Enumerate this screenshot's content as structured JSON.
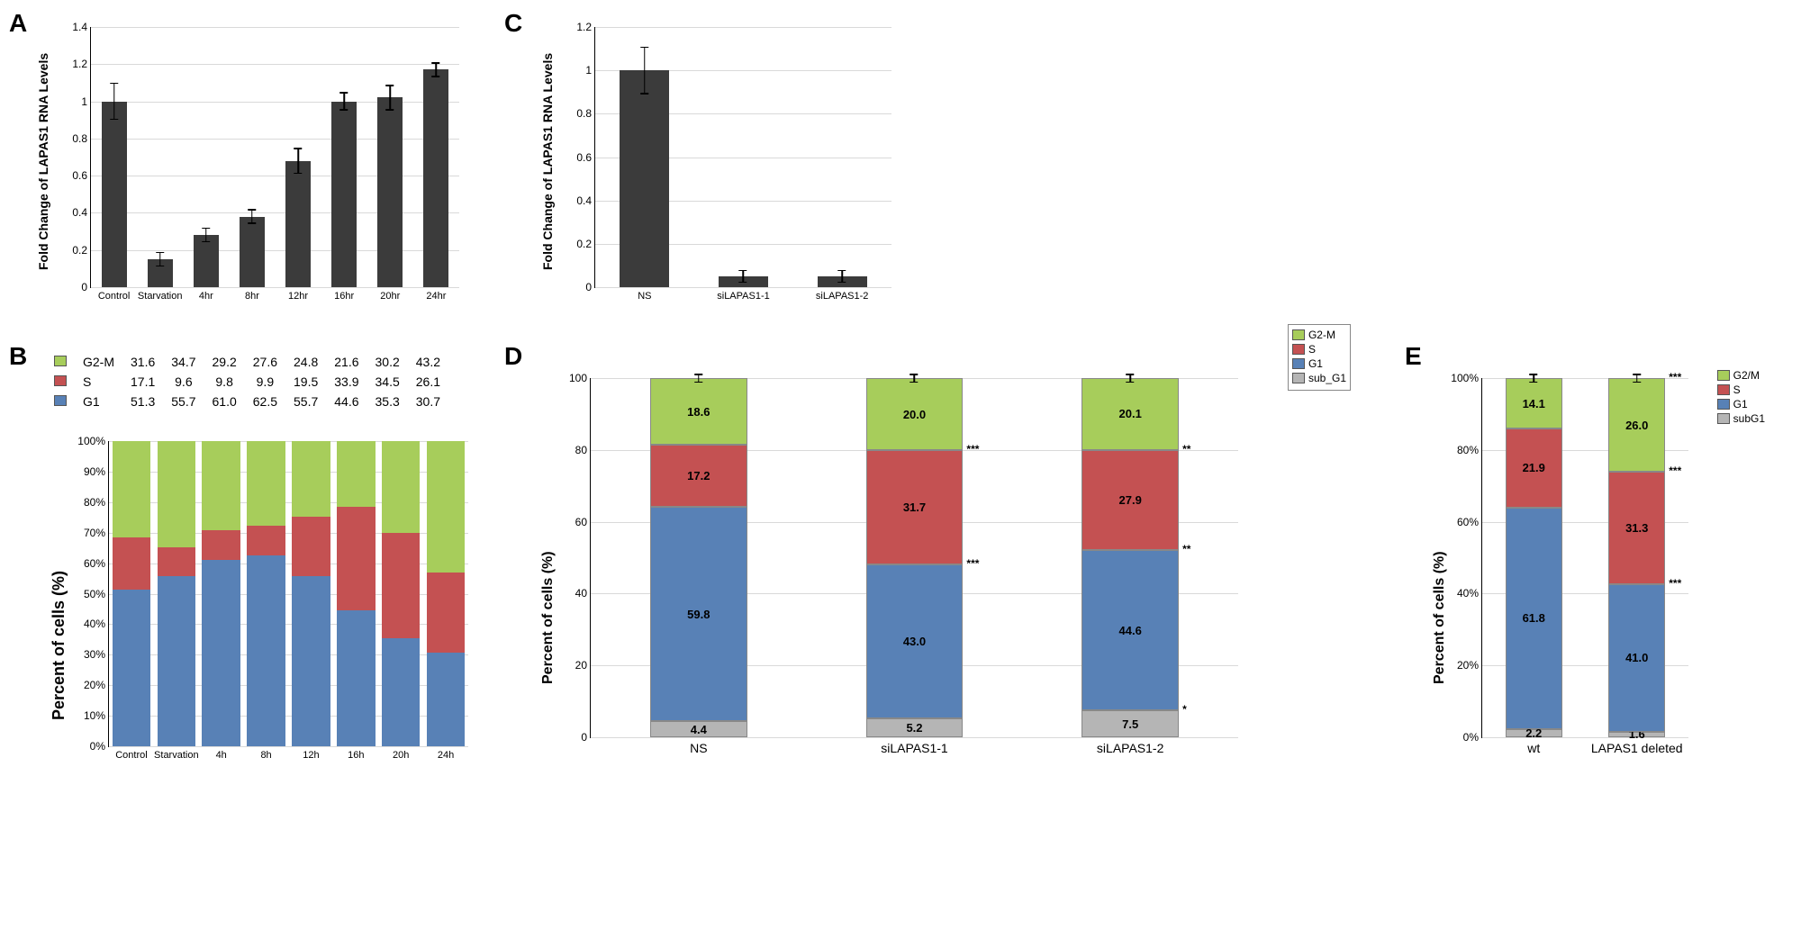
{
  "colors": {
    "bar_dark": "#3b3b3b",
    "g2m": "#a7cd5b",
    "s_phase": "#c45152",
    "g1": "#5881b6",
    "subg1": "#b5b5b5",
    "grid": "#d9d9d9",
    "bg": "#ffffff"
  },
  "panelA": {
    "label": "A",
    "ylabel": "Fold Change of LAPAS1 RNA Levels",
    "ylim": [
      0,
      1.4
    ],
    "ytick_step": 0.2,
    "categories": [
      "Control",
      "Starvation",
      "4hr",
      "8hr",
      "12hr",
      "16hr",
      "20hr",
      "24hr"
    ],
    "values": [
      1.0,
      0.15,
      0.28,
      0.38,
      0.68,
      1.0,
      1.02,
      1.17
    ],
    "errors": [
      0.1,
      0.04,
      0.04,
      0.04,
      0.07,
      0.05,
      0.07,
      0.04
    ],
    "bar_width": 0.55
  },
  "panelB": {
    "label": "B",
    "ylabel": "Percent of cells (%)",
    "ylim": [
      0,
      100
    ],
    "ytick_step": 10,
    "ytick_suffix": "%",
    "categories": [
      "Control",
      "Starvation",
      "4h",
      "8h",
      "12h",
      "16h",
      "20h",
      "24h"
    ],
    "legend": [
      {
        "key": "g2m",
        "label": "G2-M"
      },
      {
        "key": "s_phase",
        "label": "S"
      },
      {
        "key": "g1",
        "label": "G1"
      }
    ],
    "table_rows": [
      {
        "label": "G2-M",
        "color": "g2m",
        "values": [
          "31.6",
          "34.7",
          "29.2",
          "27.6",
          "24.8",
          "21.6",
          "30.2",
          "43.2"
        ]
      },
      {
        "label": "S",
        "color": "s_phase",
        "values": [
          "17.1",
          "9.6",
          "9.8",
          "9.9",
          "19.5",
          "33.9",
          "34.5",
          "26.1"
        ]
      },
      {
        "label": "G1",
        "color": "g1",
        "values": [
          "51.3",
          "55.7",
          "61.0",
          "62.5",
          "55.7",
          "44.6",
          "35.3",
          "30.7"
        ]
      }
    ],
    "stacks": [
      {
        "g1": 51.3,
        "s": 17.1,
        "g2m": 31.6
      },
      {
        "g1": 55.7,
        "s": 9.6,
        "g2m": 34.7
      },
      {
        "g1": 61.0,
        "s": 9.8,
        "g2m": 29.2
      },
      {
        "g1": 62.5,
        "s": 9.9,
        "g2m": 27.6
      },
      {
        "g1": 55.7,
        "s": 19.5,
        "g2m": 24.8
      },
      {
        "g1": 44.6,
        "s": 33.9,
        "g2m": 21.6
      },
      {
        "g1": 35.3,
        "s": 34.5,
        "g2m": 30.2
      },
      {
        "g1": 30.7,
        "s": 26.1,
        "g2m": 43.2
      }
    ],
    "bar_width": 0.85
  },
  "panelC": {
    "label": "C",
    "ylabel": "Fold Change of LAPAS1 RNA Levels",
    "ylim": [
      0,
      1.2
    ],
    "ytick_step": 0.2,
    "categories": [
      "NS",
      "siLAPAS1-1",
      "siLAPAS1-2"
    ],
    "values": [
      1.0,
      0.05,
      0.05
    ],
    "errors": [
      0.11,
      0.03,
      0.03
    ],
    "bar_width": 0.5
  },
  "panelD": {
    "label": "D",
    "ylabel": "Percent of cells (%)",
    "ylim": [
      0,
      100
    ],
    "ytick_step": 20,
    "categories": [
      "NS",
      "siLAPAS1-1",
      "siLAPAS1-2"
    ],
    "legend": [
      {
        "key": "g2m",
        "label": "G2-M"
      },
      {
        "key": "s_phase",
        "label": "S"
      },
      {
        "key": "g1",
        "label": "G1"
      },
      {
        "key": "subg1",
        "label": "sub_G1"
      }
    ],
    "stacks": [
      {
        "subg1": 4.4,
        "g1": 59.8,
        "s": 17.2,
        "g2m": 18.6,
        "labels": {
          "subg1": "4.4",
          "g1": "59.8",
          "s": "17.2",
          "g2m": "18.6"
        },
        "sig": {}
      },
      {
        "subg1": 5.2,
        "g1": 43.0,
        "s": 31.7,
        "g2m": 20.0,
        "labels": {
          "subg1": "5.2",
          "g1": "43.0",
          "s": "31.7",
          "g2m": "20.0"
        },
        "sig": {
          "s": "***",
          "g1": "***"
        }
      },
      {
        "subg1": 7.5,
        "g1": 44.6,
        "s": 27.9,
        "g2m": 20.1,
        "labels": {
          "subg1": "7.5",
          "g1": "44.6",
          "s": "27.9",
          "g2m": "20.1"
        },
        "sig": {
          "s": "**",
          "g1": "**",
          "subg1": "*"
        }
      }
    ],
    "bar_width": 0.45
  },
  "panelE": {
    "label": "E",
    "ylabel": "Percent of cells (%)",
    "ylim": [
      0,
      100
    ],
    "ytick_step": 20,
    "ytick_suffix": "%",
    "categories": [
      "wt",
      "LAPAS1 deleted"
    ],
    "legend": [
      {
        "key": "g2m",
        "label": "G2/M"
      },
      {
        "key": "s_phase",
        "label": "S"
      },
      {
        "key": "g1",
        "label": "G1"
      },
      {
        "key": "subg1",
        "label": "subG1"
      }
    ],
    "stacks": [
      {
        "subg1": 2.2,
        "g1": 61.8,
        "s": 21.9,
        "g2m": 14.1,
        "labels": {
          "subg1": "2.2",
          "g1": "61.8",
          "s": "21.9",
          "g2m": "14.1"
        },
        "sig": {}
      },
      {
        "subg1": 1.6,
        "g1": 41.0,
        "s": 31.3,
        "g2m": 26.0,
        "labels": {
          "subg1": "1.6",
          "g1": "41.0",
          "s": "31.3",
          "g2m": "26.0"
        },
        "sig": {
          "g2m": "***",
          "s": "***",
          "g1": "***"
        }
      }
    ],
    "bar_width": 0.55
  }
}
